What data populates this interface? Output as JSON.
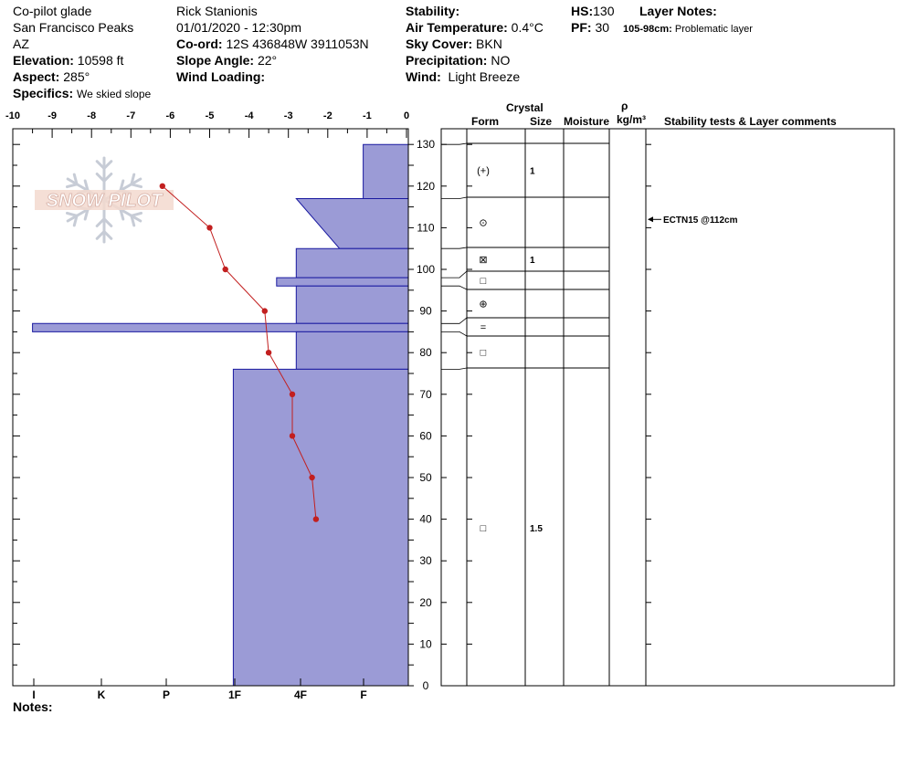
{
  "header": {
    "location": "Co-pilot glade",
    "range": "San Francisco Peaks",
    "state": "AZ",
    "elevation_label": "Elevation:",
    "elevation": "10598 ft",
    "aspect_label": "Aspect:",
    "aspect": "285°",
    "specifics_label": "Specifics:",
    "specifics": "We skied slope",
    "observer": "Rick Stanionis",
    "datetime": "01/01/2020 - 12:30pm",
    "coord_label": "Co-ord:",
    "coord": "12S 436848W 3911053N",
    "slope_label": "Slope Angle:",
    "slope": "22°",
    "wind_loading_label": "Wind Loading:",
    "wind_loading": "",
    "stability_label": "Stability:",
    "stability": "",
    "air_temp_label": "Air Temperature:",
    "air_temp": "0.4°C",
    "sky_label": "Sky Cover:",
    "sky": "BKN",
    "precip_label": "Precipitation:",
    "precip": "NO",
    "wind_label": "Wind:",
    "wind": "Light Breeze",
    "hs_label": "HS:",
    "hs": "130",
    "pf_label": "PF:",
    "pf": "30",
    "layer_notes_label": "Layer Notes:",
    "layer_note_range": "105-98cm:",
    "layer_note_text": "Problematic layer"
  },
  "logo_text": "SNOW PILOT",
  "notes_label": "Notes:",
  "table_headers": {
    "crystal": "Crystal",
    "form": "Form",
    "size": "Size",
    "moisture": "Moisture",
    "rho": "ρ",
    "density_unit": "kg/m³",
    "comments": "Stability tests & Layer comments"
  },
  "colors": {
    "hardness_fill": "#9b9bd6",
    "hardness_stroke": "#1a1aa0",
    "temperature_line": "#c21f1f"
  },
  "chart_data": {
    "type": "snow_profile",
    "temperature_axis": {
      "ticks": [
        -10,
        -9,
        -8,
        -7,
        -6,
        -5,
        -4,
        -3,
        -2,
        -1,
        0
      ],
      "range": [
        -10,
        0
      ]
    },
    "height_axis": {
      "ticks": [
        0,
        10,
        20,
        30,
        40,
        50,
        60,
        70,
        80,
        90,
        100,
        110,
        120,
        130
      ],
      "range": [
        0,
        130
      ],
      "unit": "cm"
    },
    "hardness_axis": {
      "labels": [
        "I",
        "K",
        "P",
        "1F",
        "4F",
        "F"
      ]
    },
    "temperature_profile": [
      {
        "height": 120,
        "temp": -6.2
      },
      {
        "height": 110,
        "temp": -5.0
      },
      {
        "height": 100,
        "temp": -4.6
      },
      {
        "height": 90,
        "temp": -3.6
      },
      {
        "height": 80,
        "temp": -3.5
      },
      {
        "height": 70,
        "temp": -2.9
      },
      {
        "height": 60,
        "temp": -2.9
      },
      {
        "height": 50,
        "temp": -2.4
      },
      {
        "height": 40,
        "temp": -2.3
      }
    ],
    "layers": [
      {
        "top": 130,
        "bottom": 117,
        "hardness_top": -1.1,
        "hardness_bottom": -1.1,
        "form": "(+)",
        "size": "1"
      },
      {
        "top": 117,
        "bottom": 105,
        "hardness_top": -2.8,
        "hardness_bottom": -1.7,
        "form": "⊙",
        "size": ""
      },
      {
        "top": 105,
        "bottom": 98,
        "hardness_top": -2.8,
        "hardness_bottom": -2.8,
        "form": "⊠",
        "size": "1"
      },
      {
        "top": 98,
        "bottom": 96,
        "hardness_top": -3.3,
        "hardness_bottom": -3.3,
        "form": "□",
        "size": ""
      },
      {
        "top": 96,
        "bottom": 87,
        "hardness_top": -2.8,
        "hardness_bottom": -2.8,
        "form": "⊕",
        "size": ""
      },
      {
        "top": 87,
        "bottom": 85,
        "hardness_top": -9.5,
        "hardness_bottom": -9.5,
        "form": "=",
        "size": ""
      },
      {
        "top": 85,
        "bottom": 76,
        "hardness_top": -2.8,
        "hardness_bottom": -2.8,
        "form": "□",
        "size": ""
      },
      {
        "top": 76,
        "bottom": 0,
        "hardness_top": -4.4,
        "hardness_bottom": -4.4,
        "form": "□",
        "size": "1.5"
      }
    ],
    "stability_tests": [
      {
        "height": 112,
        "text": "ECTN15 @112cm"
      }
    ]
  }
}
